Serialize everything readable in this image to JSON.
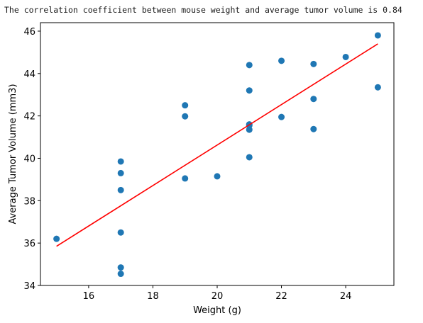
{
  "output": {
    "text": "The correlation coefficient between mouse weight and average tumor volume is 0.84"
  },
  "colors": {
    "points": "#1f77b4",
    "regression": "#ff0000",
    "axes": "#000000"
  },
  "chart_data": {
    "type": "scatter",
    "xlabel": "Weight (g)",
    "ylabel": "Average Tumor Volume (mm3)",
    "xlim": [
      14.5,
      25.5
    ],
    "ylim": [
      34,
      46.4
    ],
    "xticks": [
      16,
      18,
      20,
      22,
      24
    ],
    "yticks": [
      34,
      36,
      38,
      40,
      42,
      44,
      46
    ],
    "grid": false,
    "series": [
      {
        "type": "scatter",
        "x": [
          15,
          17,
          17,
          17,
          17,
          17,
          17,
          19,
          19,
          19,
          20,
          21,
          21,
          21,
          21,
          21,
          21,
          22,
          22,
          23,
          23,
          23,
          24,
          25,
          25
        ],
        "y": [
          36.2,
          39.85,
          39.3,
          38.5,
          36.5,
          34.85,
          34.55,
          42.5,
          41.98,
          39.05,
          39.15,
          44.4,
          43.2,
          41.55,
          41.35,
          40.05,
          41.6,
          44.6,
          41.95,
          44.45,
          42.8,
          41.38,
          44.78,
          45.8,
          43.35
        ]
      },
      {
        "type": "line",
        "x": [
          15,
          25
        ],
        "y": [
          35.85,
          45.4
        ]
      }
    ]
  }
}
